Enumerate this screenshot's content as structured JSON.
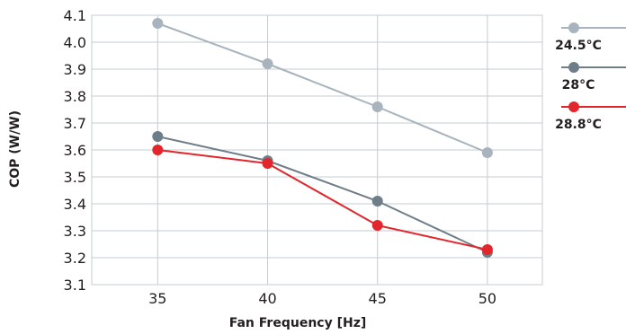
{
  "chart_data": {
    "type": "line",
    "title": "",
    "xlabel": "Fan Frequency [Hz]",
    "ylabel": "COP (W/W)",
    "x": [
      35,
      40,
      45,
      50
    ],
    "x_ticks": [
      "35",
      "40",
      "45",
      "50"
    ],
    "y_ticks": [
      "3.1",
      "3.2",
      "3.3",
      "3.4",
      "3.5",
      "3.6",
      "3.7",
      "3.8",
      "3.9",
      "4.0",
      "4.1"
    ],
    "xlim": [
      32,
      52.5
    ],
    "ylim": [
      3.1,
      4.1
    ],
    "grid": true,
    "legend_position": "right",
    "series": [
      {
        "name": "24.5°C",
        "color": "#a7b4bd",
        "values": [
          4.07,
          3.92,
          3.76,
          3.59
        ]
      },
      {
        "name": "28°C",
        "color": "#6e7e89",
        "values": [
          3.65,
          3.56,
          3.41,
          3.22
        ]
      },
      {
        "name": "28.8°C",
        "color": "#e3262b",
        "values": [
          3.6,
          3.55,
          3.32,
          3.23
        ]
      }
    ]
  }
}
